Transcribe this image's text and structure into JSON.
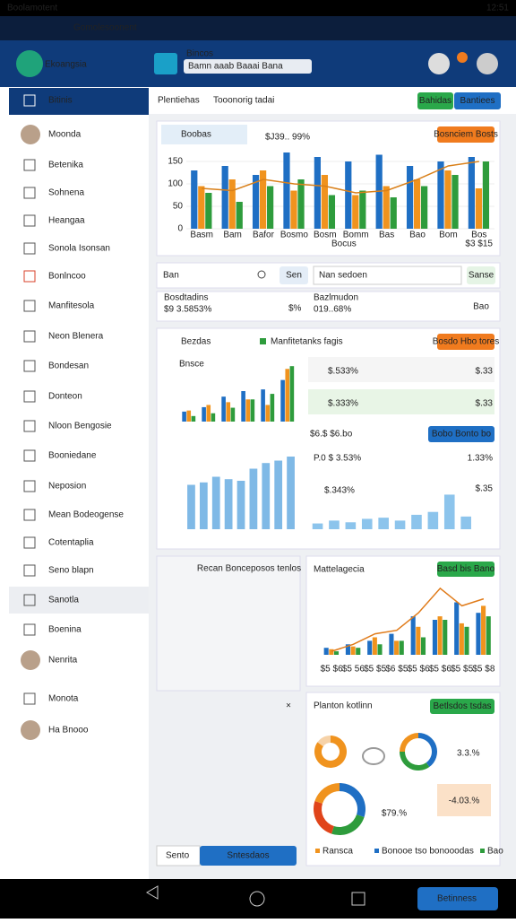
{
  "status_bar": {
    "left": "Boolamotent",
    "time": "12:51"
  },
  "app_bar": {
    "title": "Gomolesoonent"
  },
  "header": {
    "brand": "Ekoangsia",
    "search_label": "Bincos",
    "search_value": "Bamn aaab Baaai Bana"
  },
  "sidebar": {
    "items": [
      "Bitinis",
      "Moonda",
      "Betenika",
      "Sohnena",
      "Heangaa",
      "Sonola Isonsan",
      "Bonlncoo",
      "Manfitesola",
      "Neon Blenera",
      "Bondesan",
      "Donteon",
      "Nloon Bengosie",
      "Booniedane",
      "Neposion",
      "Mean Bodeogense",
      "Cotentaplia",
      "Seno blapn",
      "Sanotla",
      "Boenina",
      "Nenrita",
      "Monota",
      "Ha Bnooo"
    ]
  },
  "main": {
    "page_title": "Plentiehas",
    "page_subtitle": "Tooonorig tadai",
    "buttons": [
      "Bahidas",
      "Bantiees"
    ],
    "card1": {
      "chip": "Boobas",
      "value_text": "$J39.. 99%",
      "button": "Bosnciem Bosts",
      "x_label": "Bocus",
      "footer": "$3 $15",
      "chart": {
        "type": "bar",
        "ylim": [
          0,
          180
        ],
        "yticks": [
          0,
          50,
          100,
          150
        ],
        "categories": [
          "Basm",
          "Bam",
          "Bafor",
          "Bosmo",
          "Bosm",
          "Bomm",
          "Bas",
          "Bao",
          "Bom",
          "Bos"
        ],
        "series": [
          {
            "color": "#1f6fc4",
            "values": [
              130,
              140,
              120,
              170,
              160,
              150,
              165,
              140,
              150,
              160
            ]
          },
          {
            "color": "#f0931e",
            "values": [
              95,
              110,
              130,
              85,
              120,
              75,
              95,
              110,
              130,
              90
            ]
          },
          {
            "color": "#2e9c3c",
            "values": [
              80,
              60,
              95,
              110,
              75,
              85,
              70,
              95,
              120,
              150
            ]
          },
          {
            "type": "line",
            "color": "#d9801a",
            "values": [
              90,
              85,
              110,
              100,
              95,
              80,
              85,
              110,
              140,
              150
            ]
          }
        ]
      }
    },
    "search_row": {
      "input": "Ban",
      "button": "Sen",
      "dropdown": "Nan sedoen",
      "action": "Sanse"
    },
    "stats": {
      "label1": "Bosdtadins",
      "value1": "$9 3.5853%",
      "value2": "$%",
      "label3": "Bazlmudon",
      "value3": "019..68%",
      "button": "Bao"
    },
    "card2": {
      "title": "Bezdas",
      "legend": "Manfitetanks fagis",
      "button": "Bosdo Hbo tores",
      "chart_title": "Bnsce",
      "chart_a": {
        "type": "bar",
        "ylim": [
          0,
          110
        ],
        "series": [
          {
            "color": "#1f6fc4",
            "values": [
              18,
              26,
              45,
              55,
              58,
              75
            ]
          },
          {
            "color": "#f0931e",
            "values": [
              20,
              30,
              35,
              40,
              30,
              95
            ]
          },
          {
            "color": "#2e9c3c",
            "values": [
              10,
              15,
              25,
              40,
              50,
              100
            ]
          }
        ]
      },
      "chart_b": {
        "type": "bar",
        "ylim": [
          0,
          100
        ],
        "series": [
          {
            "color": "#7fb9e6",
            "values": [
              55,
              58,
              65,
              62,
              60,
              75,
              82,
              85,
              90
            ]
          }
        ]
      },
      "rows": [
        {
          "label": "$.533%",
          "value": "$.33"
        },
        {
          "label": "$.333%",
          "value": "$.33"
        }
      ],
      "mid_label": "$6.$ $6.bo",
      "mid_button": "Bobo Bonto bo",
      "row_b": "P.0 $ 3.53%",
      "row_b_value": "1.33%",
      "row_c": "$.343%",
      "row_c_value": "$.35",
      "chart_c": {
        "type": "bar",
        "ylim": [
          0,
          70
        ],
        "series": [
          {
            "color": "#8cc4ec",
            "values": [
              10,
              15,
              12,
              18,
              20,
              15,
              25,
              30,
              60,
              22
            ]
          }
        ]
      }
    },
    "card3": {
      "title": "Recan Bonceposos tenlos",
      "close": "×"
    },
    "card4": {
      "title": "Mattelagecia",
      "button": "Basd bis Bano",
      "chart": {
        "type": "bar",
        "ylim": [
          0,
          100
        ],
        "categories": [
          "$5 $6",
          "$5 56",
          "$5 $5",
          "$6 $5",
          "$5 $6",
          "$5 $6",
          "$5 $5",
          "$5 $8"
        ],
        "series": [
          {
            "color": "#1f6fc4",
            "values": [
              10,
              15,
              20,
              30,
              55,
              50,
              75,
              60
            ]
          },
          {
            "color": "#f0931e",
            "values": [
              8,
              12,
              25,
              20,
              40,
              55,
              45,
              70
            ]
          },
          {
            "color": "#2e9c3c",
            "values": [
              5,
              10,
              15,
              20,
              25,
              50,
              40,
              55
            ]
          },
          {
            "type": "line",
            "color": "#e07b1a",
            "values": [
              5,
              15,
              30,
              35,
              60,
              95,
              70,
              80
            ]
          }
        ]
      }
    },
    "card5": {
      "title": "Planton kotlinn",
      "button": "Betlsdos tsdas",
      "big_value": "3.3.%",
      "value2": "$79.%",
      "value3": "-4.03.%",
      "legend": [
        "Ransca",
        "Bonooe tso bonooodas",
        "Bao"
      ],
      "donuts": [
        {
          "type": "pie",
          "values": [
            85,
            15
          ],
          "colors": [
            "#f0931e",
            "#f6d2a8"
          ]
        },
        {
          "type": "pie",
          "values": [
            40,
            35,
            25
          ],
          "colors": [
            "#1f6fc4",
            "#2e9c3c",
            "#f0931e"
          ]
        },
        {
          "type": "pie",
          "values": [
            30,
            25,
            25,
            20
          ],
          "colors": [
            "#1f6fc4",
            "#2e9c3c",
            "#e0441a",
            "#f0931e"
          ]
        }
      ]
    },
    "bottom": {
      "dropdown": "Sento",
      "button": "Sntesdaos"
    }
  },
  "nav_bar": {
    "button": "Betinness"
  }
}
